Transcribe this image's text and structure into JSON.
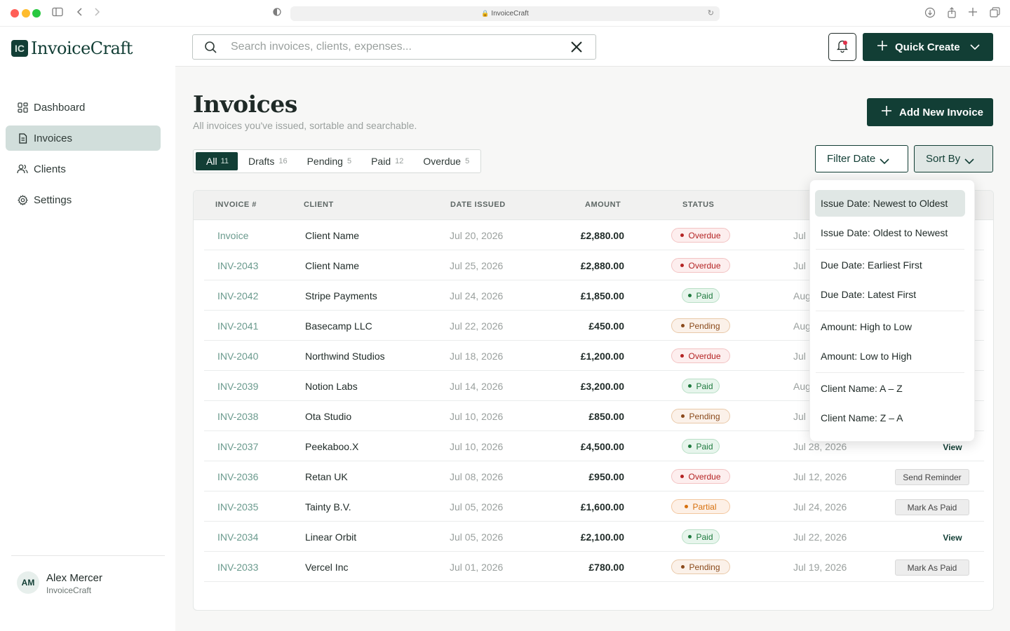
{
  "browser": {
    "url": "InvoiceCraft"
  },
  "app": {
    "brand": "InvoiceCraft",
    "logo_glyph": "IC"
  },
  "sidebar": {
    "items": [
      {
        "label": "Dashboard",
        "icon": "dashboard-icon"
      },
      {
        "label": "Invoices",
        "icon": "document-icon",
        "active": true
      },
      {
        "label": "Clients",
        "icon": "users-icon"
      },
      {
        "label": "Settings",
        "icon": "gear-icon"
      }
    ],
    "user": {
      "initials": "AM",
      "name": "Alex Mercer",
      "org": "InvoiceCraft"
    }
  },
  "topbar": {
    "search_placeholder": "Search invoices, clients, expenses...",
    "quick_create": "Quick Create"
  },
  "page": {
    "title": "Invoices",
    "subtitle": "All invoices you've issued, sortable and searchable.",
    "add_button": "Add New Invoice",
    "tabs": [
      {
        "label": "All",
        "count": "11"
      },
      {
        "label": "Drafts",
        "count": "16"
      },
      {
        "label": "Pending",
        "count": "5"
      },
      {
        "label": "Paid",
        "count": "12"
      },
      {
        "label": "Overdue",
        "count": "5"
      }
    ],
    "filter_date": "Filter Date",
    "sort_by": "Sort By"
  },
  "table": {
    "columns": [
      "INVOICE #",
      "CLIENT",
      "DATE ISSUED",
      "AMOUNT",
      "STATUS"
    ],
    "rows": [
      {
        "inv": "Invoice",
        "client": "Client Name",
        "date": "Jul 20, 2026",
        "amount": "£2,880.00",
        "status": "Overdue",
        "kind": "overdue",
        "due": "Jul",
        "action": ""
      },
      {
        "inv": "INV-2043",
        "client": "Client Name",
        "date": "Jul 25, 2026",
        "amount": "£2,880.00",
        "status": "Overdue",
        "kind": "overdue",
        "due": "Jul",
        "action": ""
      },
      {
        "inv": "INV-2042",
        "client": "Stripe Payments",
        "date": "Jul 24, 2026",
        "amount": "£1,850.00",
        "status": "Paid",
        "kind": "paid",
        "due": "Aug",
        "action": ""
      },
      {
        "inv": "INV-2041",
        "client": "Basecamp LLC",
        "date": "Jul 22, 2026",
        "amount": "£450.00",
        "status": "Pending",
        "kind": "pending",
        "due": "Aug",
        "action": ""
      },
      {
        "inv": "INV-2040",
        "client": "Northwind Studios",
        "date": "Jul 18, 2026",
        "amount": "£1,200.00",
        "status": "Overdue",
        "kind": "overdue",
        "due": "Jul",
        "action": ""
      },
      {
        "inv": "INV-2039",
        "client": "Notion Labs",
        "date": "Jul 14, 2026",
        "amount": "£3,200.00",
        "status": "Paid",
        "kind": "paid",
        "due": "Aug",
        "action": ""
      },
      {
        "inv": "INV-2038",
        "client": "Ota Studio",
        "date": "Jul 10, 2026",
        "amount": "£850.00",
        "status": "Pending",
        "kind": "pending",
        "due": "Jul",
        "action": ""
      },
      {
        "inv": "INV-2037",
        "client": "Peekaboo.X",
        "date": "Jul 10, 2026",
        "amount": "£4,500.00",
        "status": "Paid",
        "kind": "paid",
        "due": "Jul 28, 2026",
        "action": "View",
        "action_kind": "link"
      },
      {
        "inv": "INV-2036",
        "client": "Retan UK",
        "date": "Jul 08, 2026",
        "amount": "£950.00",
        "status": "Overdue",
        "kind": "overdue",
        "due": "Jul 12, 2026",
        "action": "Send Reminder",
        "action_kind": "btn"
      },
      {
        "inv": "INV-2035",
        "client": "Tainty B.V.",
        "date": "Jul 05, 2026",
        "amount": "£1,600.00",
        "status": "Partial",
        "kind": "partial",
        "due": "Jul 24, 2026",
        "action": "Mark As Paid",
        "action_kind": "btn"
      },
      {
        "inv": "INV-2034",
        "client": "Linear Orbit",
        "date": "Jul 05, 2026",
        "amount": "£2,100.00",
        "status": "Paid",
        "kind": "paid",
        "due": "Jul 22, 2026",
        "action": "View",
        "action_kind": "link"
      },
      {
        "inv": "INV-2033",
        "client": "Vercel Inc",
        "date": "Jul 01, 2026",
        "amount": "£780.00",
        "status": "Pending",
        "kind": "pending",
        "due": "Jul 19, 2026",
        "action": "Mark As Paid",
        "action_kind": "btn"
      }
    ]
  },
  "sort_menu": {
    "options": [
      {
        "label": "Issue Date: Newest to Oldest",
        "selected": true
      },
      {
        "label": "Issue Date: Oldest to Newest"
      },
      {
        "label": "Due Date: Earliest First"
      },
      {
        "label": "Due Date: Latest First"
      },
      {
        "label": "Amount: High to Low"
      },
      {
        "label": "Amount: Low to High"
      },
      {
        "label": "Client Name: A – Z"
      },
      {
        "label": "Client Name: Z – A"
      }
    ]
  },
  "colors": {
    "brand": "#123e35",
    "overdue": "#b42323",
    "paid": "#1f7a3f",
    "pending": "#8a4a1c",
    "partial": "#d6700d"
  }
}
